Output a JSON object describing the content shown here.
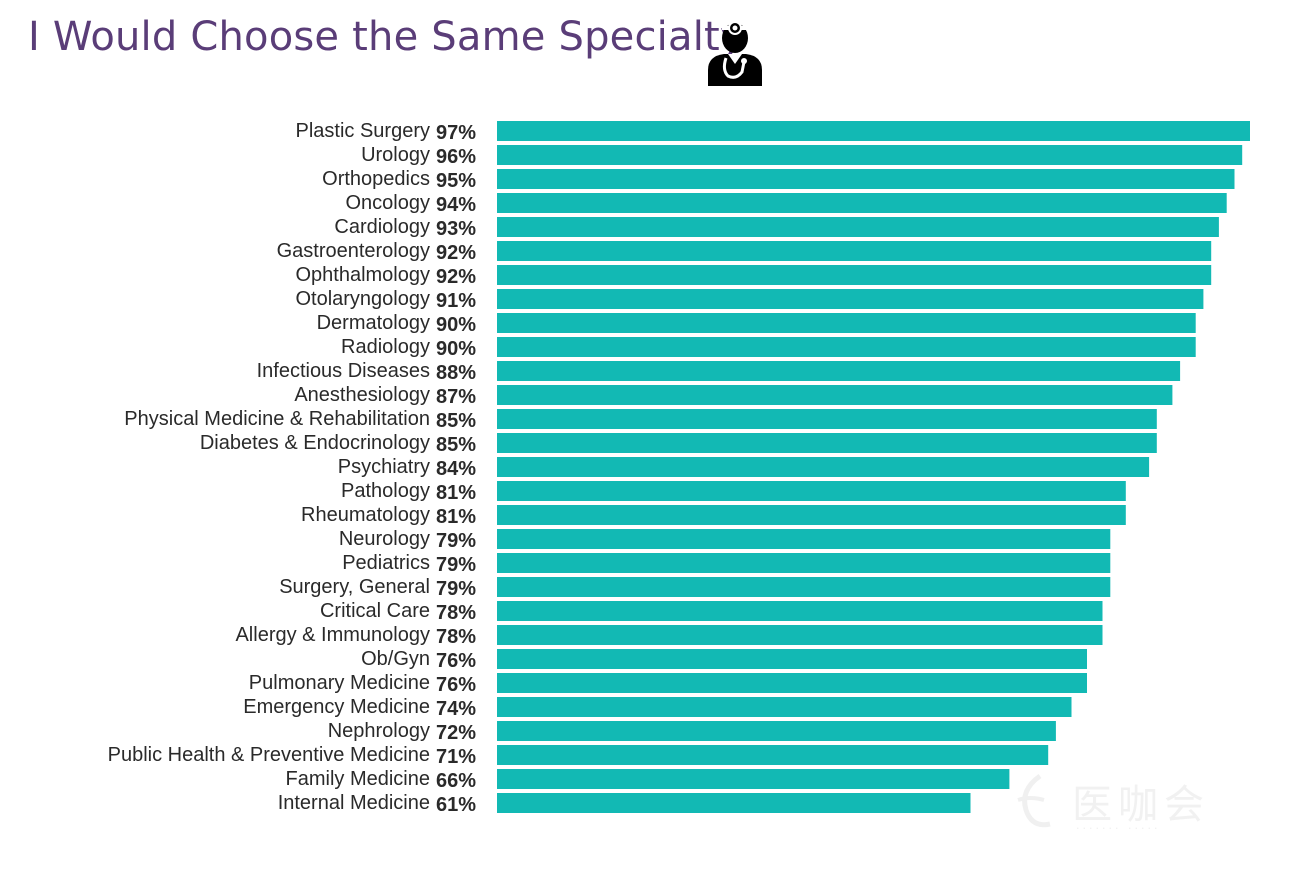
{
  "title": "I Would Choose the Same Specialty",
  "icons": {
    "header_icon": "doctor-stethoscope-icon"
  },
  "colors": {
    "title": "#5a3d78",
    "bar": "#12b9b4",
    "label": "#2a2a2a"
  },
  "chart_data": {
    "type": "bar",
    "orientation": "horizontal",
    "title": "I Would Choose the Same Specialty",
    "xlabel": "",
    "ylabel": "",
    "grid": false,
    "legend": "none",
    "categories": [
      "Plastic Surgery",
      "Urology",
      "Orthopedics",
      "Oncology",
      "Cardiology",
      "Gastroenterology",
      "Ophthalmology",
      "Otolaryngology",
      "Dermatology",
      "Radiology",
      "Infectious Diseases",
      "Anesthesiology",
      "Physical Medicine & Rehabilitation",
      "Diabetes & Endocrinology",
      "Psychiatry",
      "Pathology",
      "Rheumatology",
      "Neurology",
      "Pediatrics",
      "Surgery, General",
      "Critical Care",
      "Allergy & Immunology",
      "Ob/Gyn",
      "Pulmonary Medicine",
      "Emergency Medicine",
      "Nephrology",
      "Public Health & Preventive Medicine",
      "Family Medicine",
      "Internal Medicine"
    ],
    "values": [
      97,
      96,
      95,
      94,
      93,
      92,
      92,
      91,
      90,
      90,
      88,
      87,
      85,
      85,
      84,
      81,
      81,
      79,
      79,
      79,
      78,
      78,
      76,
      76,
      74,
      72,
      71,
      66,
      61
    ],
    "value_labels": [
      "97%",
      "96%",
      "95%",
      "94%",
      "93%",
      "92%",
      "92%",
      "91%",
      "90%",
      "90%",
      "88%",
      "87%",
      "85%",
      "85%",
      "84%",
      "81%",
      "81%",
      "79%",
      "79%",
      "79%",
      "78%",
      "78%",
      "76%",
      "76%",
      "74%",
      "72%",
      "71%",
      "66%",
      "61%"
    ]
  },
  "watermark": {
    "text": "医咖会"
  }
}
